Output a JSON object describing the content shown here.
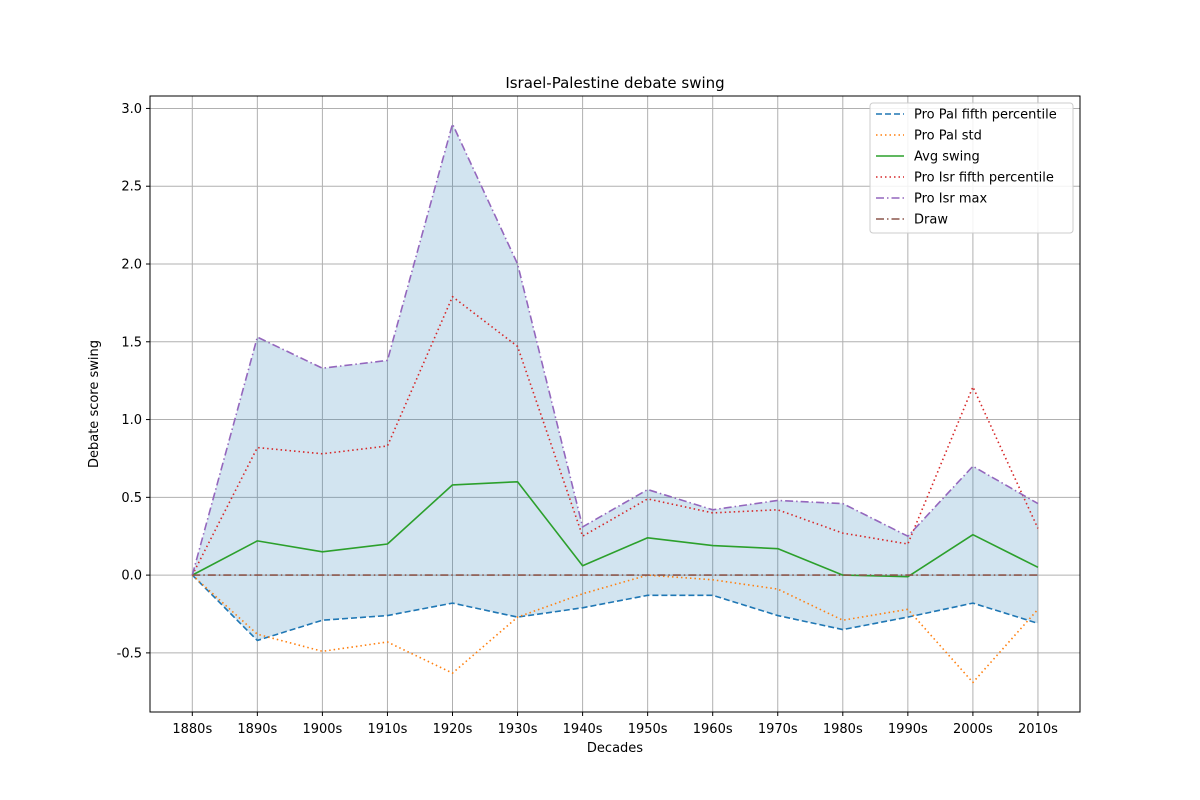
{
  "chart_data": {
    "type": "line",
    "title": "Israel-Palestine debate swing",
    "xlabel": "Decades",
    "ylabel": "Debate score swing",
    "categories": [
      "1880s",
      "1890s",
      "1900s",
      "1910s",
      "1920s",
      "1930s",
      "1940s",
      "1950s",
      "1960s",
      "1970s",
      "1980s",
      "1990s",
      "2000s",
      "2010s"
    ],
    "ylim": [
      -0.88,
      3.08
    ],
    "yticks": [
      "-0.5",
      "0.0",
      "0.5",
      "1.0",
      "1.5",
      "2.0",
      "2.5",
      "3.0"
    ],
    "grid": true,
    "legend_position": "top-right",
    "fill_between": {
      "lower_series": "Pro Pal fifth percentile",
      "upper_series": "Pro Isr max",
      "color": "#1f77b4",
      "opacity": 0.2
    },
    "series": [
      {
        "name": "Pro Pal fifth percentile",
        "color": "#1f77b4",
        "dash": "dashed",
        "values": [
          0.0,
          -0.42,
          -0.29,
          -0.26,
          -0.18,
          -0.27,
          -0.21,
          -0.13,
          -0.13,
          -0.26,
          -0.35,
          -0.27,
          -0.18,
          -0.31
        ]
      },
      {
        "name": "Pro Pal std",
        "color": "#ff7f0e",
        "dash": "dotted",
        "values": [
          0.0,
          -0.38,
          -0.49,
          -0.43,
          -0.63,
          -0.27,
          -0.12,
          0.0,
          -0.03,
          -0.09,
          -0.29,
          -0.22,
          -0.69,
          -0.22
        ]
      },
      {
        "name": "Avg swing",
        "color": "#2ca02c",
        "dash": "solid",
        "values": [
          0.0,
          0.22,
          0.15,
          0.2,
          0.58,
          0.6,
          0.06,
          0.24,
          0.19,
          0.17,
          0.0,
          -0.01,
          0.26,
          0.05
        ]
      },
      {
        "name": "Pro Isr fifth percentile",
        "color": "#d62728",
        "dash": "dotted",
        "values": [
          0.0,
          0.82,
          0.78,
          0.83,
          1.79,
          1.47,
          0.25,
          0.49,
          0.4,
          0.42,
          0.27,
          0.2,
          1.21,
          0.3
        ]
      },
      {
        "name": "Pro Isr max",
        "color": "#9467bd",
        "dash": "dashdot",
        "values": [
          0.0,
          1.53,
          1.33,
          1.38,
          2.9,
          2.0,
          0.31,
          0.55,
          0.42,
          0.48,
          0.46,
          0.25,
          0.7,
          0.46
        ]
      },
      {
        "name": "Draw",
        "color": "#8c564b",
        "dash": "dashdot",
        "values": [
          0.0,
          0.0,
          0.0,
          0.0,
          0.0,
          0.0,
          0.0,
          0.0,
          0.0,
          0.0,
          0.0,
          0.0,
          0.0,
          0.0
        ]
      }
    ]
  }
}
